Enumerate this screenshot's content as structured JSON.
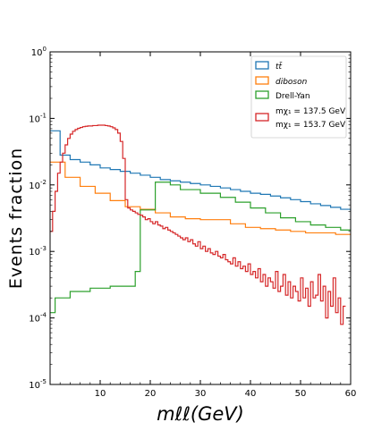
{
  "chart_data": {
    "type": "line",
    "ylabel": "Events fraction",
    "xlabel": "mℓℓ(GeV)",
    "xlim": [
      0,
      60
    ],
    "ylim": [
      1e-05,
      1
    ],
    "yscale": "log",
    "grid": false,
    "legend_position": "top-right",
    "x_ticks": [
      {
        "value": 10,
        "label": "10"
      },
      {
        "value": 20,
        "label": "20"
      },
      {
        "value": 30,
        "label": "30"
      },
      {
        "value": 40,
        "label": "40"
      },
      {
        "value": 50,
        "label": "50"
      },
      {
        "value": 60,
        "label": "60"
      }
    ],
    "y_ticks": [
      {
        "value": 1,
        "base": "10",
        "exp": "0"
      },
      {
        "value": 0.1,
        "base": "10",
        "exp": "-1"
      },
      {
        "value": 0.01,
        "base": "10",
        "exp": "-2"
      },
      {
        "value": 0.001,
        "base": "10",
        "exp": "-3"
      },
      {
        "value": 0.0001,
        "base": "10",
        "exp": "-4"
      },
      {
        "value": 1e-05,
        "base": "10",
        "exp": "-5"
      }
    ],
    "series": [
      {
        "name": "tt̄",
        "color": "#1f77b4",
        "bin_width": 2,
        "x_start": 0,
        "values": [
          0.065,
          0.028,
          0.024,
          0.022,
          0.02,
          0.018,
          0.017,
          0.016,
          0.015,
          0.014,
          0.013,
          0.012,
          0.0115,
          0.011,
          0.0105,
          0.01,
          0.0095,
          0.009,
          0.0085,
          0.008,
          0.0075,
          0.0072,
          0.0068,
          0.0064,
          0.006,
          0.0056,
          0.0052,
          0.0049,
          0.0046,
          0.0043,
          0.0041,
          0.0039,
          0.0037,
          0.0035
        ]
      },
      {
        "name": "diboson",
        "color": "#ff7f0e",
        "bin_width": 3,
        "x_start": 0,
        "values": [
          0.022,
          0.013,
          0.0095,
          0.0075,
          0.0058,
          0.0047,
          0.0043,
          0.0038,
          0.0033,
          0.0031,
          0.003,
          0.003,
          0.0026,
          0.0023,
          0.0022,
          0.0021,
          0.002,
          0.0019,
          0.0019,
          0.0018,
          0.0018
        ]
      },
      {
        "name": "Drell-Yan",
        "color": "#2ca02c",
        "edges": [
          0,
          1,
          4,
          8,
          12,
          17,
          18,
          21,
          24,
          26,
          30,
          34,
          37,
          40,
          43,
          46,
          49,
          52,
          55,
          58,
          60
        ],
        "values": [
          0.00012,
          0.0002,
          0.00025,
          0.00028,
          0.0003,
          0.0005,
          0.0042,
          0.011,
          0.01,
          0.0085,
          0.0075,
          0.0065,
          0.0055,
          0.0045,
          0.0038,
          0.0032,
          0.0028,
          0.0025,
          0.0023,
          0.0021
        ]
      },
      {
        "name": "mχ₁⁰ = 137.5 GeV / mχ̃₁± = 153.7 GeV",
        "legend_lines": [
          "mχ₁ = 137.5 GeV",
          "mχ₁ = 153.7 GeV"
        ],
        "color": "#d62728",
        "bin_width": 0.5,
        "x_start": 0,
        "values": [
          0.002,
          0.004,
          0.008,
          0.015,
          0.022,
          0.03,
          0.04,
          0.05,
          0.058,
          0.064,
          0.068,
          0.071,
          0.073,
          0.075,
          0.076,
          0.077,
          0.077,
          0.078,
          0.078,
          0.079,
          0.079,
          0.079,
          0.078,
          0.077,
          0.075,
          0.072,
          0.068,
          0.06,
          0.045,
          0.025,
          0.006,
          0.0045,
          0.0042,
          0.004,
          0.0038,
          0.0036,
          0.0035,
          0.0033,
          0.003,
          0.0031,
          0.0028,
          0.0026,
          0.0028,
          0.0025,
          0.0024,
          0.0022,
          0.0023,
          0.0021,
          0.002,
          0.0019,
          0.0018,
          0.0017,
          0.0016,
          0.0015,
          0.0016,
          0.0014,
          0.0015,
          0.0013,
          0.0012,
          0.0014,
          0.0011,
          0.0012,
          0.001,
          0.0011,
          0.00095,
          0.0009,
          0.001,
          0.00085,
          0.0008,
          0.0009,
          0.00075,
          0.0007,
          0.00065,
          0.0008,
          0.0006,
          0.0007,
          0.00055,
          0.0006,
          0.0005,
          0.00065,
          0.00045,
          0.0005,
          0.0004,
          0.00055,
          0.00035,
          0.00045,
          0.0003,
          0.0004,
          0.00035,
          0.00028,
          0.0005,
          0.00025,
          0.0003,
          0.00045,
          0.00022,
          0.00035,
          0.0002,
          0.0003,
          0.00025,
          0.00018,
          0.0004,
          0.0002,
          0.00028,
          0.00015,
          0.00035,
          0.0002,
          0.00022,
          0.00045,
          0.00018,
          0.0003,
          0.0001,
          0.00025,
          0.00015,
          0.0004,
          0.00012,
          0.0002,
          8e-05,
          0.00015
        ]
      }
    ]
  }
}
